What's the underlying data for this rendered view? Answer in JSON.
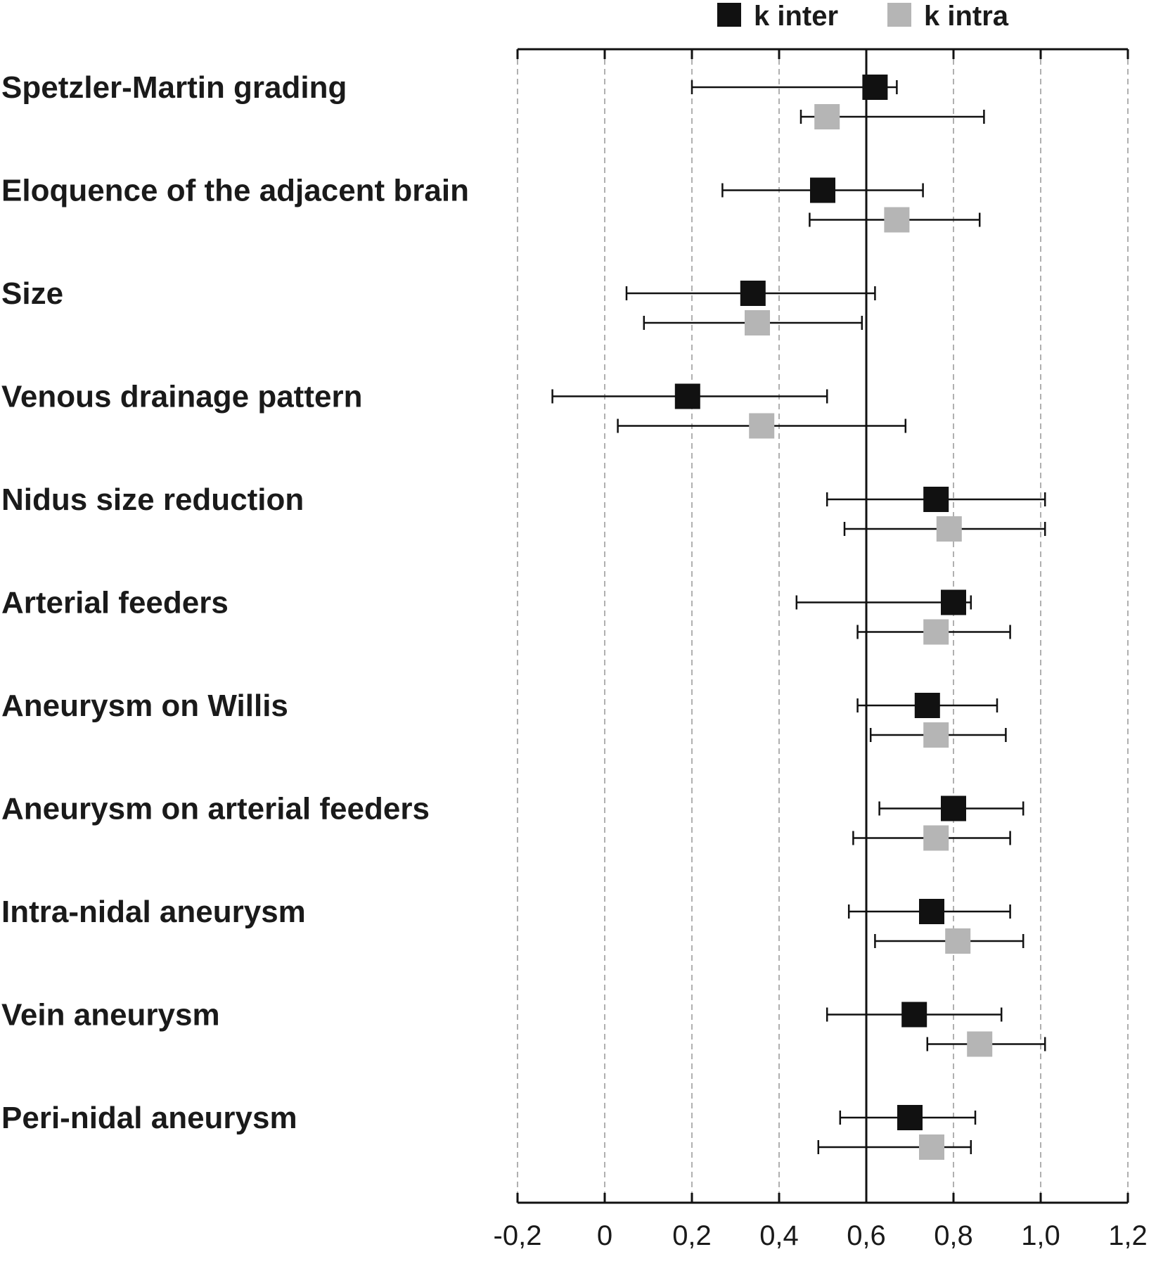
{
  "chart_data": {
    "type": "scatter",
    "subtype": "forest-plot",
    "title": "",
    "xlabel": "",
    "ylabel": "",
    "xlim": [
      -0.2,
      1.2
    ],
    "xticks": [
      -0.2,
      0,
      0.2,
      0.4,
      0.6,
      0.8,
      1.0,
      1.2
    ],
    "xtick_labels": [
      "-0,2",
      "0",
      "0,2",
      "0,4",
      "0,6",
      "0,8",
      "1,0",
      "1,2"
    ],
    "reference_line": 0.6,
    "grid": "vertical dashed",
    "legend_position": "top-center",
    "categories": [
      "Spetzler-Martin grading",
      "Eloquence of the adjacent brain",
      "Size",
      "Venous drainage pattern",
      "Nidus size reduction",
      "Arterial feeders",
      "Aneurysm on Willis",
      "Aneurysm on arterial feeders",
      "Intra-nidal aneurysm",
      "Vein aneurysm",
      "Peri-nidal aneurysm"
    ],
    "series": [
      {
        "name": "k inter",
        "color": "#111111",
        "values": [
          0.62,
          0.5,
          0.34,
          0.19,
          0.76,
          0.8,
          0.74,
          0.8,
          0.75,
          0.71,
          0.7
        ],
        "ci_low": [
          0.2,
          0.27,
          0.05,
          -0.12,
          0.51,
          0.44,
          0.58,
          0.63,
          0.56,
          0.51,
          0.54
        ],
        "ci_high": [
          0.67,
          0.73,
          0.62,
          0.51,
          1.01,
          0.84,
          0.9,
          0.96,
          0.93,
          0.91,
          0.85
        ]
      },
      {
        "name": "k intra",
        "color": "#b5b5b5",
        "values": [
          0.51,
          0.67,
          0.35,
          0.36,
          0.79,
          0.76,
          0.76,
          0.76,
          0.81,
          0.86,
          0.75
        ],
        "ci_low": [
          0.45,
          0.47,
          0.09,
          0.03,
          0.55,
          0.58,
          0.61,
          0.57,
          0.62,
          0.74,
          0.49
        ],
        "ci_high": [
          0.87,
          0.86,
          0.59,
          0.69,
          1.01,
          0.93,
          0.92,
          0.93,
          0.96,
          1.01,
          0.84
        ]
      }
    ]
  }
}
